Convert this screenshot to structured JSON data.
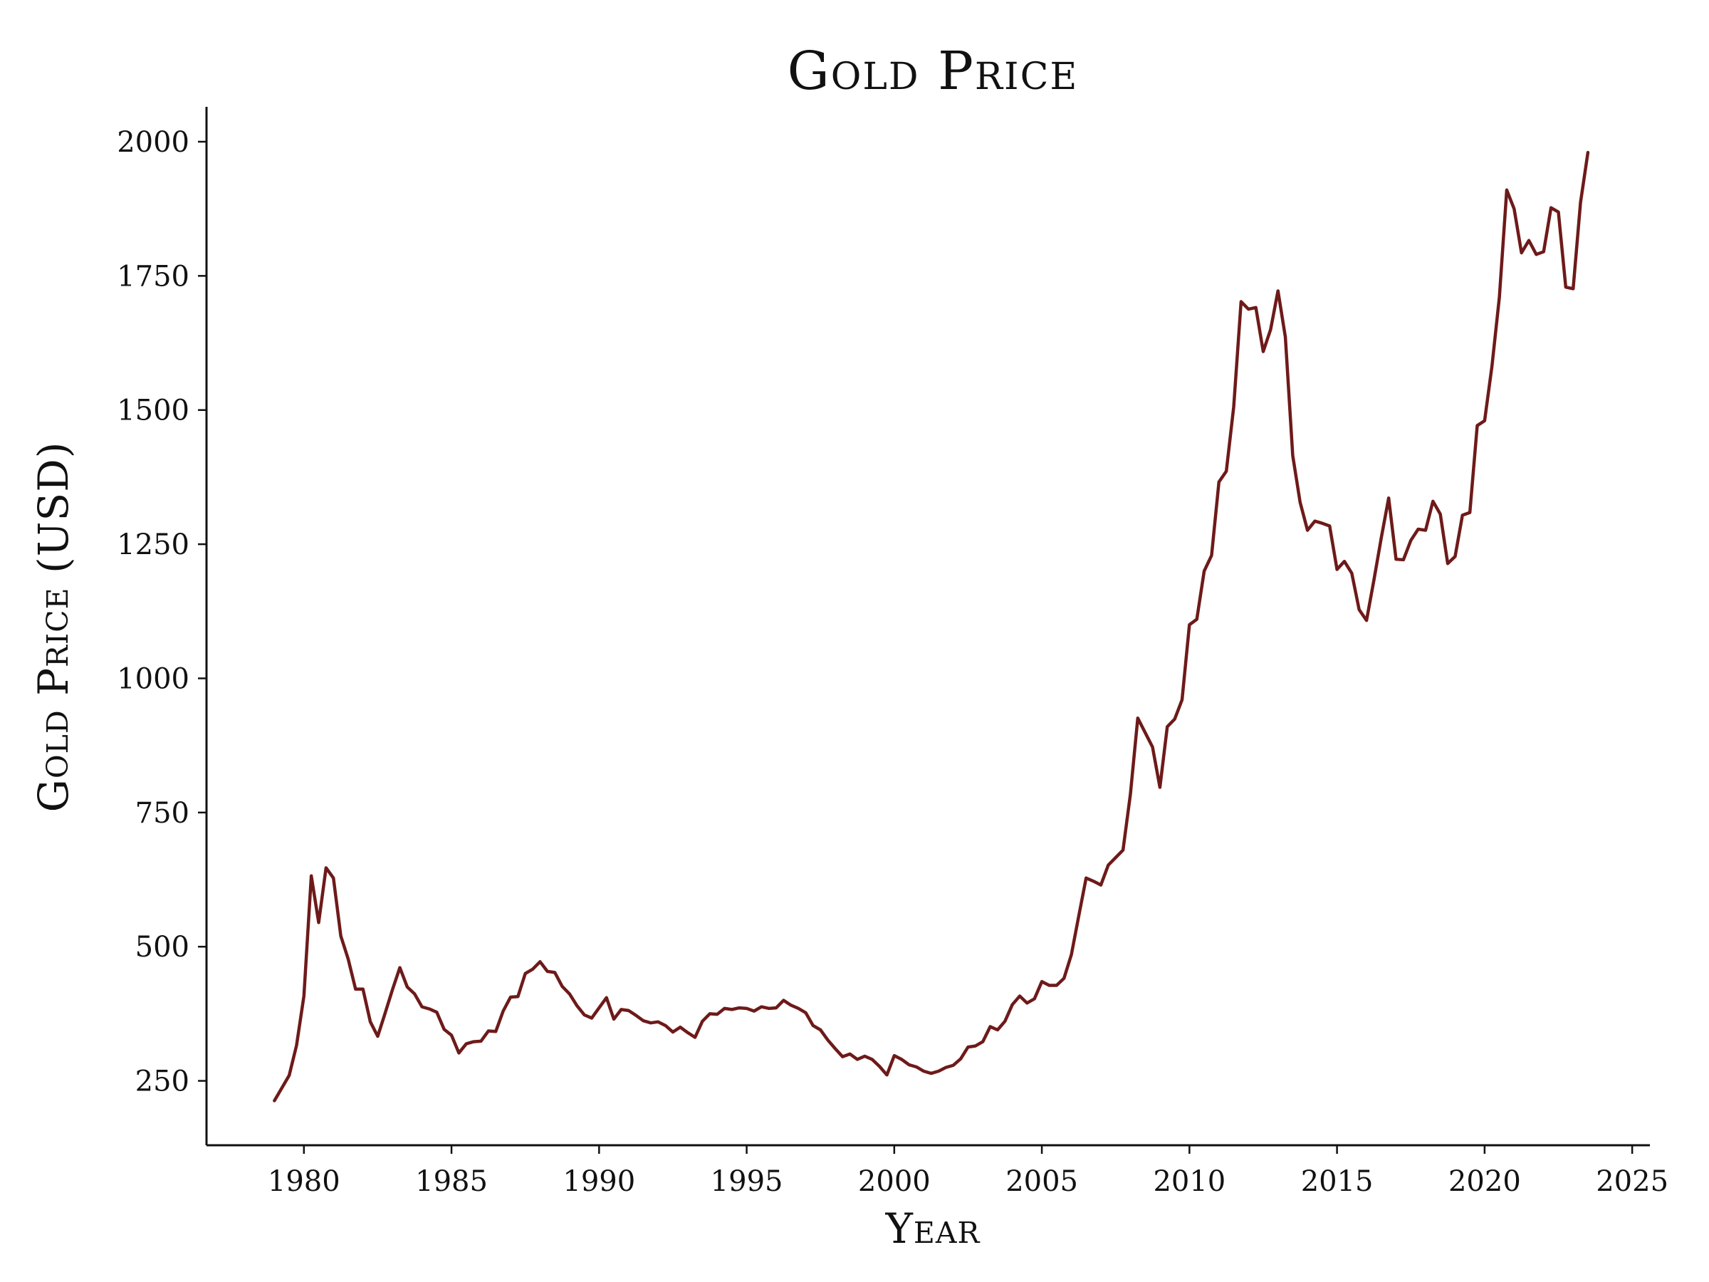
{
  "chart_data": {
    "type": "line",
    "title": "Gold Price",
    "xlabel": "Year",
    "ylabel": "Gold Price (USD)",
    "xlim": [
      1976.7,
      2025.6
    ],
    "ylim": [
      130,
      2065
    ],
    "x_ticks": [
      1980,
      1985,
      1990,
      1995,
      2000,
      2005,
      2010,
      2015,
      2020,
      2025
    ],
    "y_ticks": [
      250,
      500,
      750,
      1000,
      1250,
      1500,
      1750,
      2000
    ],
    "grid": false,
    "legend": "none",
    "colors": {
      "line": "#6e1a1a",
      "axis": "#111111"
    },
    "series": [
      {
        "x": [
          1979.0,
          1979.5,
          1979.75,
          1980.0,
          1980.25,
          1980.5,
          1980.75,
          1981.0,
          1981.25,
          1981.5,
          1981.75,
          1982.0,
          1982.25,
          1982.5,
          1982.75,
          1983.0,
          1983.25,
          1983.5,
          1983.75,
          1984.0,
          1984.25,
          1984.5,
          1984.75,
          1985.0,
          1985.25,
          1985.5,
          1985.75,
          1986.0,
          1986.25,
          1986.5,
          1986.75,
          1987.0,
          1987.25,
          1987.5,
          1987.75,
          1988.0,
          1988.25,
          1988.5,
          1988.75,
          1989.0,
          1989.25,
          1989.5,
          1989.75,
          1990.0,
          1990.25,
          1990.5,
          1990.75,
          1991.0,
          1991.25,
          1991.5,
          1991.75,
          1992.0,
          1992.25,
          1992.5,
          1992.75,
          1993.0,
          1993.25,
          1993.5,
          1993.75,
          1994.0,
          1994.25,
          1994.5,
          1994.75,
          1995.0,
          1995.25,
          1995.5,
          1995.75,
          1996.0,
          1996.25,
          1996.5,
          1996.75,
          1997.0,
          1997.25,
          1997.5,
          1997.75,
          1998.0,
          1998.25,
          1998.5,
          1998.75,
          1999.0,
          1999.25,
          1999.5,
          1999.75,
          2000.0,
          2000.25,
          2000.5,
          2000.75,
          2001.0,
          2001.25,
          2001.5,
          2001.75,
          2002.0,
          2002.25,
          2002.5,
          2002.75,
          2003.0,
          2003.25,
          2003.5,
          2003.75,
          2004.0,
          2004.25,
          2004.5,
          2004.75,
          2005.0,
          2005.25,
          2005.5,
          2005.75,
          2006.0,
          2006.25,
          2006.5,
          2006.75,
          2007.0,
          2007.25,
          2007.5,
          2007.75,
          2008.0,
          2008.25,
          2008.5,
          2008.75,
          2009.0,
          2009.25,
          2009.5,
          2009.75,
          2010.0,
          2010.25,
          2010.5,
          2010.75,
          2011.0,
          2011.25,
          2011.5,
          2011.75,
          2012.0,
          2012.25,
          2012.5,
          2012.75,
          2013.0,
          2013.25,
          2013.5,
          2013.75,
          2014.0,
          2014.25,
          2014.5,
          2014.75,
          2015.0,
          2015.25,
          2015.5,
          2015.75,
          2016.0,
          2016.25,
          2016.5,
          2016.75,
          2017.0,
          2017.25,
          2017.5,
          2017.75,
          2018.0,
          2018.25,
          2018.5,
          2018.75,
          2019.0,
          2019.25,
          2019.5,
          2019.75,
          2020.0,
          2020.25,
          2020.5,
          2020.75,
          2021.0,
          2021.25,
          2021.5,
          2021.75,
          2022.0,
          2022.25,
          2022.5,
          2022.75,
          2023.0,
          2023.25,
          2023.5
        ],
        "values": [
          213,
          260,
          316,
          408,
          632,
          545,
          647,
          628,
          520,
          477,
          421,
          421,
          360,
          333,
          376,
          420,
          461,
          425,
          412,
          388,
          384,
          378,
          346,
          335,
          302,
          319,
          323,
          324,
          343,
          342,
          380,
          406,
          407,
          450,
          458,
          472,
          454,
          452,
          426,
          412,
          390,
          373,
          367,
          386,
          405,
          365,
          383,
          381,
          372,
          362,
          358,
          360,
          353,
          341,
          350,
          340,
          331,
          361,
          375,
          374,
          385,
          383,
          386,
          385,
          380,
          388,
          385,
          386,
          400,
          391,
          385,
          377,
          353,
          345,
          326,
          310,
          295,
          300,
          290,
          296,
          290,
          277,
          261,
          297,
          290,
          280,
          276,
          268,
          264,
          268,
          275,
          279,
          291,
          313,
          315,
          323,
          351,
          345,
          361,
          392,
          408,
          395,
          403,
          435,
          428,
          428,
          441,
          485,
          557,
          628,
          622,
          615,
          652,
          666,
          680,
          784,
          926,
          899,
          872,
          797,
          910,
          924,
          960,
          1100,
          1110,
          1200,
          1229,
          1366,
          1386,
          1506,
          1702,
          1688,
          1691,
          1609,
          1650,
          1722,
          1636,
          1415,
          1328,
          1276,
          1293,
          1289,
          1284,
          1203,
          1218,
          1196,
          1128,
          1108,
          1183,
          1262,
          1336,
          1222,
          1221,
          1257,
          1278,
          1276,
          1330,
          1306,
          1214,
          1227,
          1304,
          1309,
          1471,
          1480,
          1582,
          1710,
          1910,
          1875,
          1793,
          1816,
          1790,
          1795,
          1877,
          1869,
          1729,
          1726,
          1887,
          1980
        ]
      }
    ]
  }
}
